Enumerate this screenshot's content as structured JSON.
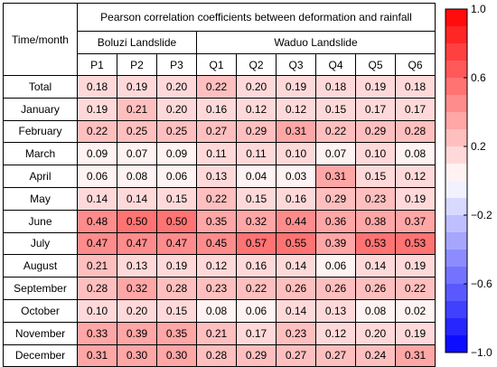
{
  "chart_data": {
    "type": "heatmap",
    "title": "Pearson correlation coefficients between deformation and rainfall",
    "row_header": "Time/month",
    "groups": [
      {
        "name": "Boluzi Landslide",
        "columns": [
          "P1",
          "P2",
          "P3"
        ]
      },
      {
        "name": "Waduo Landslide",
        "columns": [
          "Q1",
          "Q2",
          "Q3",
          "Q4",
          "Q5",
          "Q6"
        ]
      }
    ],
    "columns": [
      "P1",
      "P2",
      "P3",
      "Q1",
      "Q2",
      "Q3",
      "Q4",
      "Q5",
      "Q6"
    ],
    "rows": [
      "Total",
      "January",
      "February",
      "March",
      "April",
      "May",
      "June",
      "July",
      "August",
      "September",
      "October",
      "November",
      "December"
    ],
    "values": [
      [
        "0.18",
        "0.19",
        "0.20",
        "0.22",
        "0.20",
        "0.19",
        "0.18",
        "0.19",
        "0.18"
      ],
      [
        "0.19",
        "0.21",
        "0.20",
        "0.16",
        "0.12",
        "0.12",
        "0.15",
        "0.17",
        "0.17"
      ],
      [
        "0.22",
        "0.25",
        "0.25",
        "0.27",
        "0.29",
        "0.31",
        "0.22",
        "0.29",
        "0.28"
      ],
      [
        "0.09",
        "0.07",
        "0.09",
        "0.11",
        "0.11",
        "0.10",
        "0.07",
        "0.10",
        "0.08"
      ],
      [
        "0.06",
        "0.08",
        "0.06",
        "0.13",
        "0.04",
        "0.03",
        "0.31",
        "0.15",
        "0.12"
      ],
      [
        "0.14",
        "0.14",
        "0.15",
        "0.22",
        "0.15",
        "0.16",
        "0.29",
        "0.23",
        "0.19"
      ],
      [
        "0.48",
        "0.50",
        "0.50",
        "0.35",
        "0.32",
        "0.44",
        "0.36",
        "0.38",
        "0.37"
      ],
      [
        "0.47",
        "0.47",
        "0.47",
        "0.45",
        "0.57",
        "0.55",
        "0.39",
        "0.53",
        "0.53"
      ],
      [
        "0.21",
        "0.13",
        "0.19",
        "0.12",
        "0.16",
        "0.14",
        "0.06",
        "0.14",
        "0.19"
      ],
      [
        "0.28",
        "0.32",
        "0.28",
        "0.23",
        "0.22",
        "0.26",
        "0.26",
        "0.26",
        "0.22"
      ],
      [
        "0.10",
        "0.20",
        "0.15",
        "0.08",
        "0.06",
        "0.14",
        "0.13",
        "0.08",
        "0.02"
      ],
      [
        "0.33",
        "0.39",
        "0.35",
        "0.21",
        "0.17",
        "0.23",
        "0.12",
        "0.20",
        "0.19"
      ],
      [
        "0.31",
        "0.30",
        "0.30",
        "0.28",
        "0.29",
        "0.27",
        "0.27",
        "0.24",
        "0.31"
      ]
    ],
    "colorbar": {
      "range": [
        -1.0,
        1.0
      ],
      "ticks": [
        "1.0",
        "0.6",
        "0.2",
        "−0.2",
        "−0.6",
        "−1.0"
      ],
      "colors": {
        "high": "#ff0000",
        "mid": "#ffffff",
        "low": "#0000ff"
      },
      "bands": 20
    }
  }
}
